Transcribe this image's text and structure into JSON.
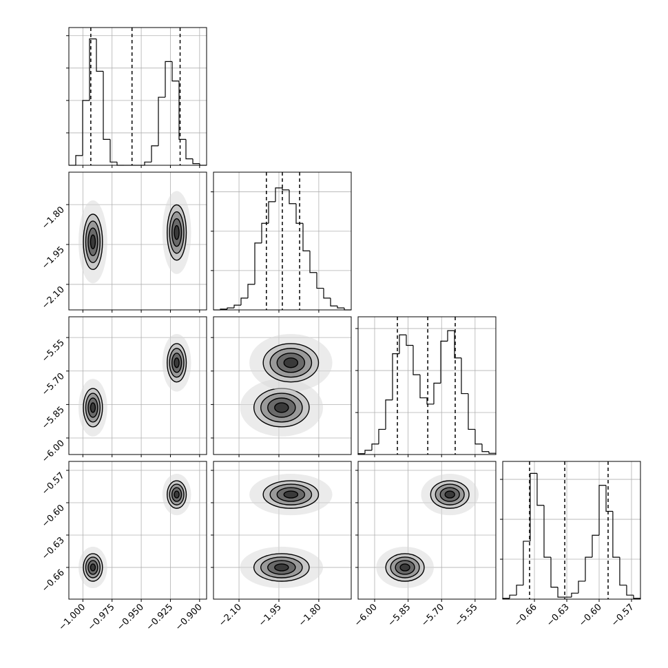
{
  "chart_data": {
    "type": "corner",
    "grid": true,
    "color": "#000000",
    "levels": [
      0.5,
      1,
      1.5,
      2
    ],
    "params": [
      {
        "lim": [
          -1.012,
          -0.894
        ],
        "ticks": [
          {
            "value": -1.0,
            "label": "−1.000"
          },
          {
            "value": -0.975,
            "label": "−0.975"
          },
          {
            "value": -0.95,
            "label": "−0.950"
          },
          {
            "value": -0.925,
            "label": "−0.925"
          },
          {
            "value": -0.9,
            "label": "−0.900"
          }
        ],
        "bins": [
          -1.012,
          -1.0061,
          -1.0002,
          -0.9943,
          -0.9884,
          -0.9825,
          -0.9766,
          -0.9707,
          -0.9648,
          -0.9589,
          -0.953,
          -0.9471,
          -0.9412,
          -0.9353,
          -0.9294,
          -0.9235,
          -0.9176,
          -0.9117,
          -0.9058,
          -0.8999,
          -0.894
        ],
        "counts": [
          0,
          0.3,
          2.0,
          3.9,
          2.9,
          0.8,
          0.1,
          0,
          0,
          0,
          0,
          0.1,
          0.6,
          2.1,
          3.2,
          2.6,
          0.8,
          0.2,
          0.05,
          0
        ],
        "quantiles": [
          -0.9932,
          -0.9579,
          -0.9167
        ],
        "hist_ylim": [
          0,
          4.25
        ],
        "hist_yticks": [
          1,
          2,
          3,
          4
        ]
      },
      {
        "lim": [
          -2.196,
          -1.678
        ],
        "ticks": [
          {
            "value": -2.1,
            "label": "−2.10"
          },
          {
            "value": -1.95,
            "label": "−1.95"
          },
          {
            "value": -1.8,
            "label": "−1.80"
          }
        ],
        "bins": [
          -2.196,
          -2.1701,
          -2.1442,
          -2.1183,
          -2.0924,
          -2.0665,
          -2.0406,
          -2.0147,
          -1.9888,
          -1.9629,
          -1.937,
          -1.9111,
          -1.8852,
          -1.8593,
          -1.8334,
          -1.8075,
          -1.7816,
          -1.7557,
          -1.7298,
          -1.7039,
          -1.678
        ],
        "counts": [
          0,
          0.02,
          0.05,
          0.12,
          0.3,
          0.65,
          1.7,
          2.2,
          2.75,
          3.1,
          3.05,
          2.7,
          2.2,
          1.5,
          0.95,
          0.55,
          0.3,
          0.1,
          0.05,
          0
        ],
        "quantiles": [
          -1.997,
          -1.937,
          -1.872
        ],
        "hist_ylim": [
          0,
          3.5
        ],
        "hist_yticks": [
          1,
          2,
          3
        ]
      },
      {
        "lim": [
          -6.074,
          -5.457
        ],
        "ticks": [
          {
            "value": -6.0,
            "label": "−6.00"
          },
          {
            "value": -5.85,
            "label": "−5.85"
          },
          {
            "value": -5.7,
            "label": "−5.70"
          },
          {
            "value": -5.55,
            "label": "−5.55"
          }
        ],
        "bins": [
          -6.074,
          -6.0432,
          -6.0123,
          -5.9815,
          -5.9506,
          -5.9198,
          -5.8889,
          -5.8581,
          -5.8272,
          -5.7964,
          -5.7655,
          -5.7347,
          -5.7038,
          -5.673,
          -5.6421,
          -5.6113,
          -5.5804,
          -5.5496,
          -5.5187,
          -5.4879,
          -5.457
        ],
        "counts": [
          0.02,
          0.1,
          0.25,
          0.6,
          1.3,
          2.4,
          2.85,
          2.6,
          1.9,
          1.35,
          1.2,
          1.7,
          2.7,
          2.95,
          2.3,
          1.45,
          0.6,
          0.25,
          0.07,
          0.03
        ],
        "quantiles": [
          -5.898,
          -5.762,
          -5.639
        ],
        "hist_ylim": [
          0,
          3.28
        ],
        "hist_yticks": [
          1,
          2,
          3
        ]
      },
      {
        "lim": [
          -0.6894,
          -0.5617
        ],
        "ticks": [
          {
            "value": -0.66,
            "label": "−0.66"
          },
          {
            "value": -0.63,
            "label": "−0.63"
          },
          {
            "value": -0.6,
            "label": "−0.60"
          },
          {
            "value": -0.57,
            "label": "−0.57"
          }
        ],
        "bins": [
          -0.6894,
          -0.683,
          -0.6766,
          -0.6703,
          -0.6639,
          -0.6575,
          -0.6511,
          -0.6447,
          -0.6383,
          -0.6319,
          -0.6256,
          -0.6192,
          -0.6128,
          -0.6064,
          -0.6,
          -0.5936,
          -0.5873,
          -0.5809,
          -0.5745,
          -0.5681,
          -0.5617
        ],
        "counts": [
          0.02,
          0.1,
          0.35,
          1.45,
          3.15,
          2.35,
          1.05,
          0.3,
          0.05,
          0.05,
          0.15,
          0.45,
          1.05,
          1.6,
          2.85,
          2.2,
          1.05,
          0.35,
          0.1,
          0.02
        ],
        "quantiles": [
          -0.6645,
          -0.6319,
          -0.5917
        ],
        "hist_ylim": [
          0,
          3.45
        ],
        "hist_yticks": [
          1,
          2,
          3
        ]
      }
    ],
    "modes": [
      {
        "mean": [
          -0.9914,
          -1.94,
          -5.864,
          -0.66
        ],
        "sd": [
          0.0041,
          0.052,
          0.043,
          0.0064
        ]
      },
      {
        "mean": [
          -0.9196,
          -1.905,
          -5.663,
          -0.5924
        ],
        "sd": [
          0.0041,
          0.052,
          0.043,
          0.0064
        ]
      }
    ]
  }
}
